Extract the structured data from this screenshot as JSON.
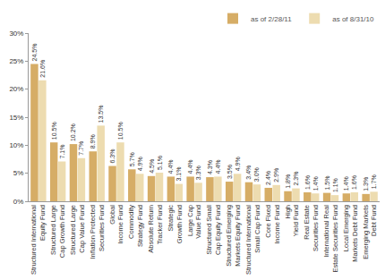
{
  "chart_data": {
    "type": "bar",
    "categories": [
      "Structured International Equity Fund",
      "Structured Large Cap Growth Fund",
      "Structured Large Cap Value Fund",
      "Inflation Protected Securities Fund",
      "Global Income Fund",
      "Commodity Strategy Fund",
      "Absolute Return Tracker Fund",
      "Strategic Growth Fund",
      "Large Cap Value Fund",
      "Structured Small Cap Equity Fund",
      "Structured Emerging Markets Equity Fund",
      "Structured International Small Cap Fund",
      "Core Fixed Income Fund",
      "High Yield Fund",
      "Real Estate Securities Fund",
      "International Real Estate Securities Fund",
      "Local Emerging Markets Debt Fund",
      "Emerging Markets Debt Fund"
    ],
    "series": [
      {
        "name": "as of 2/28/11",
        "color": "#d6ad66",
        "values": [
          24.5,
          10.5,
          10.2,
          8.9,
          6.3,
          5.7,
          4.5,
          4.4,
          4.4,
          4.3,
          3.5,
          3.4,
          2.4,
          1.8,
          1.6,
          1.5,
          1.4,
          1.3
        ],
        "value_labels": [
          "24.5%",
          "10.5%",
          "10.2%",
          "8.9%",
          "6.3%",
          "5.7%",
          "4.5%",
          "4.4%",
          "4.4%",
          "4.3%",
          "3.5%",
          "3.4%",
          "2.4%",
          "1.8%",
          "1.6%",
          "1.5%",
          "1.4%",
          "1.3%"
        ]
      },
      {
        "name": "as of 8/31/10",
        "color": "#eddcb0",
        "values": [
          21.6,
          7.1,
          7.7,
          13.5,
          10.5,
          4.9,
          5.1,
          3.1,
          3.3,
          4.4,
          4.9,
          3.0,
          2.9,
          2.3,
          1.4,
          1.1,
          1.6,
          1.7
        ],
        "value_labels": [
          "21.6%",
          "7.1%",
          "7.7%",
          "13.5%",
          "10.5%",
          "4.9%",
          "5.1%",
          "3.1%",
          "3.3%",
          "4.4%",
          "4.9%",
          "3.0%",
          "2.9%",
          "2.3%",
          "1.4%",
          "1.1%",
          "1.6%",
          "1.7%"
        ]
      }
    ],
    "ylim": [
      0,
      30
    ],
    "yticks": [
      {
        "value": 0,
        "label": "0%"
      },
      {
        "value": 5,
        "label": "5%"
      },
      {
        "value": 10,
        "label": "10%"
      },
      {
        "value": 15,
        "label": "15%"
      },
      {
        "value": 20,
        "label": "20%"
      },
      {
        "value": 25,
        "label": "25%"
      },
      {
        "value": 30,
        "label": "30%"
      }
    ],
    "grid": false,
    "legend": "top-right",
    "data_labels": true
  }
}
